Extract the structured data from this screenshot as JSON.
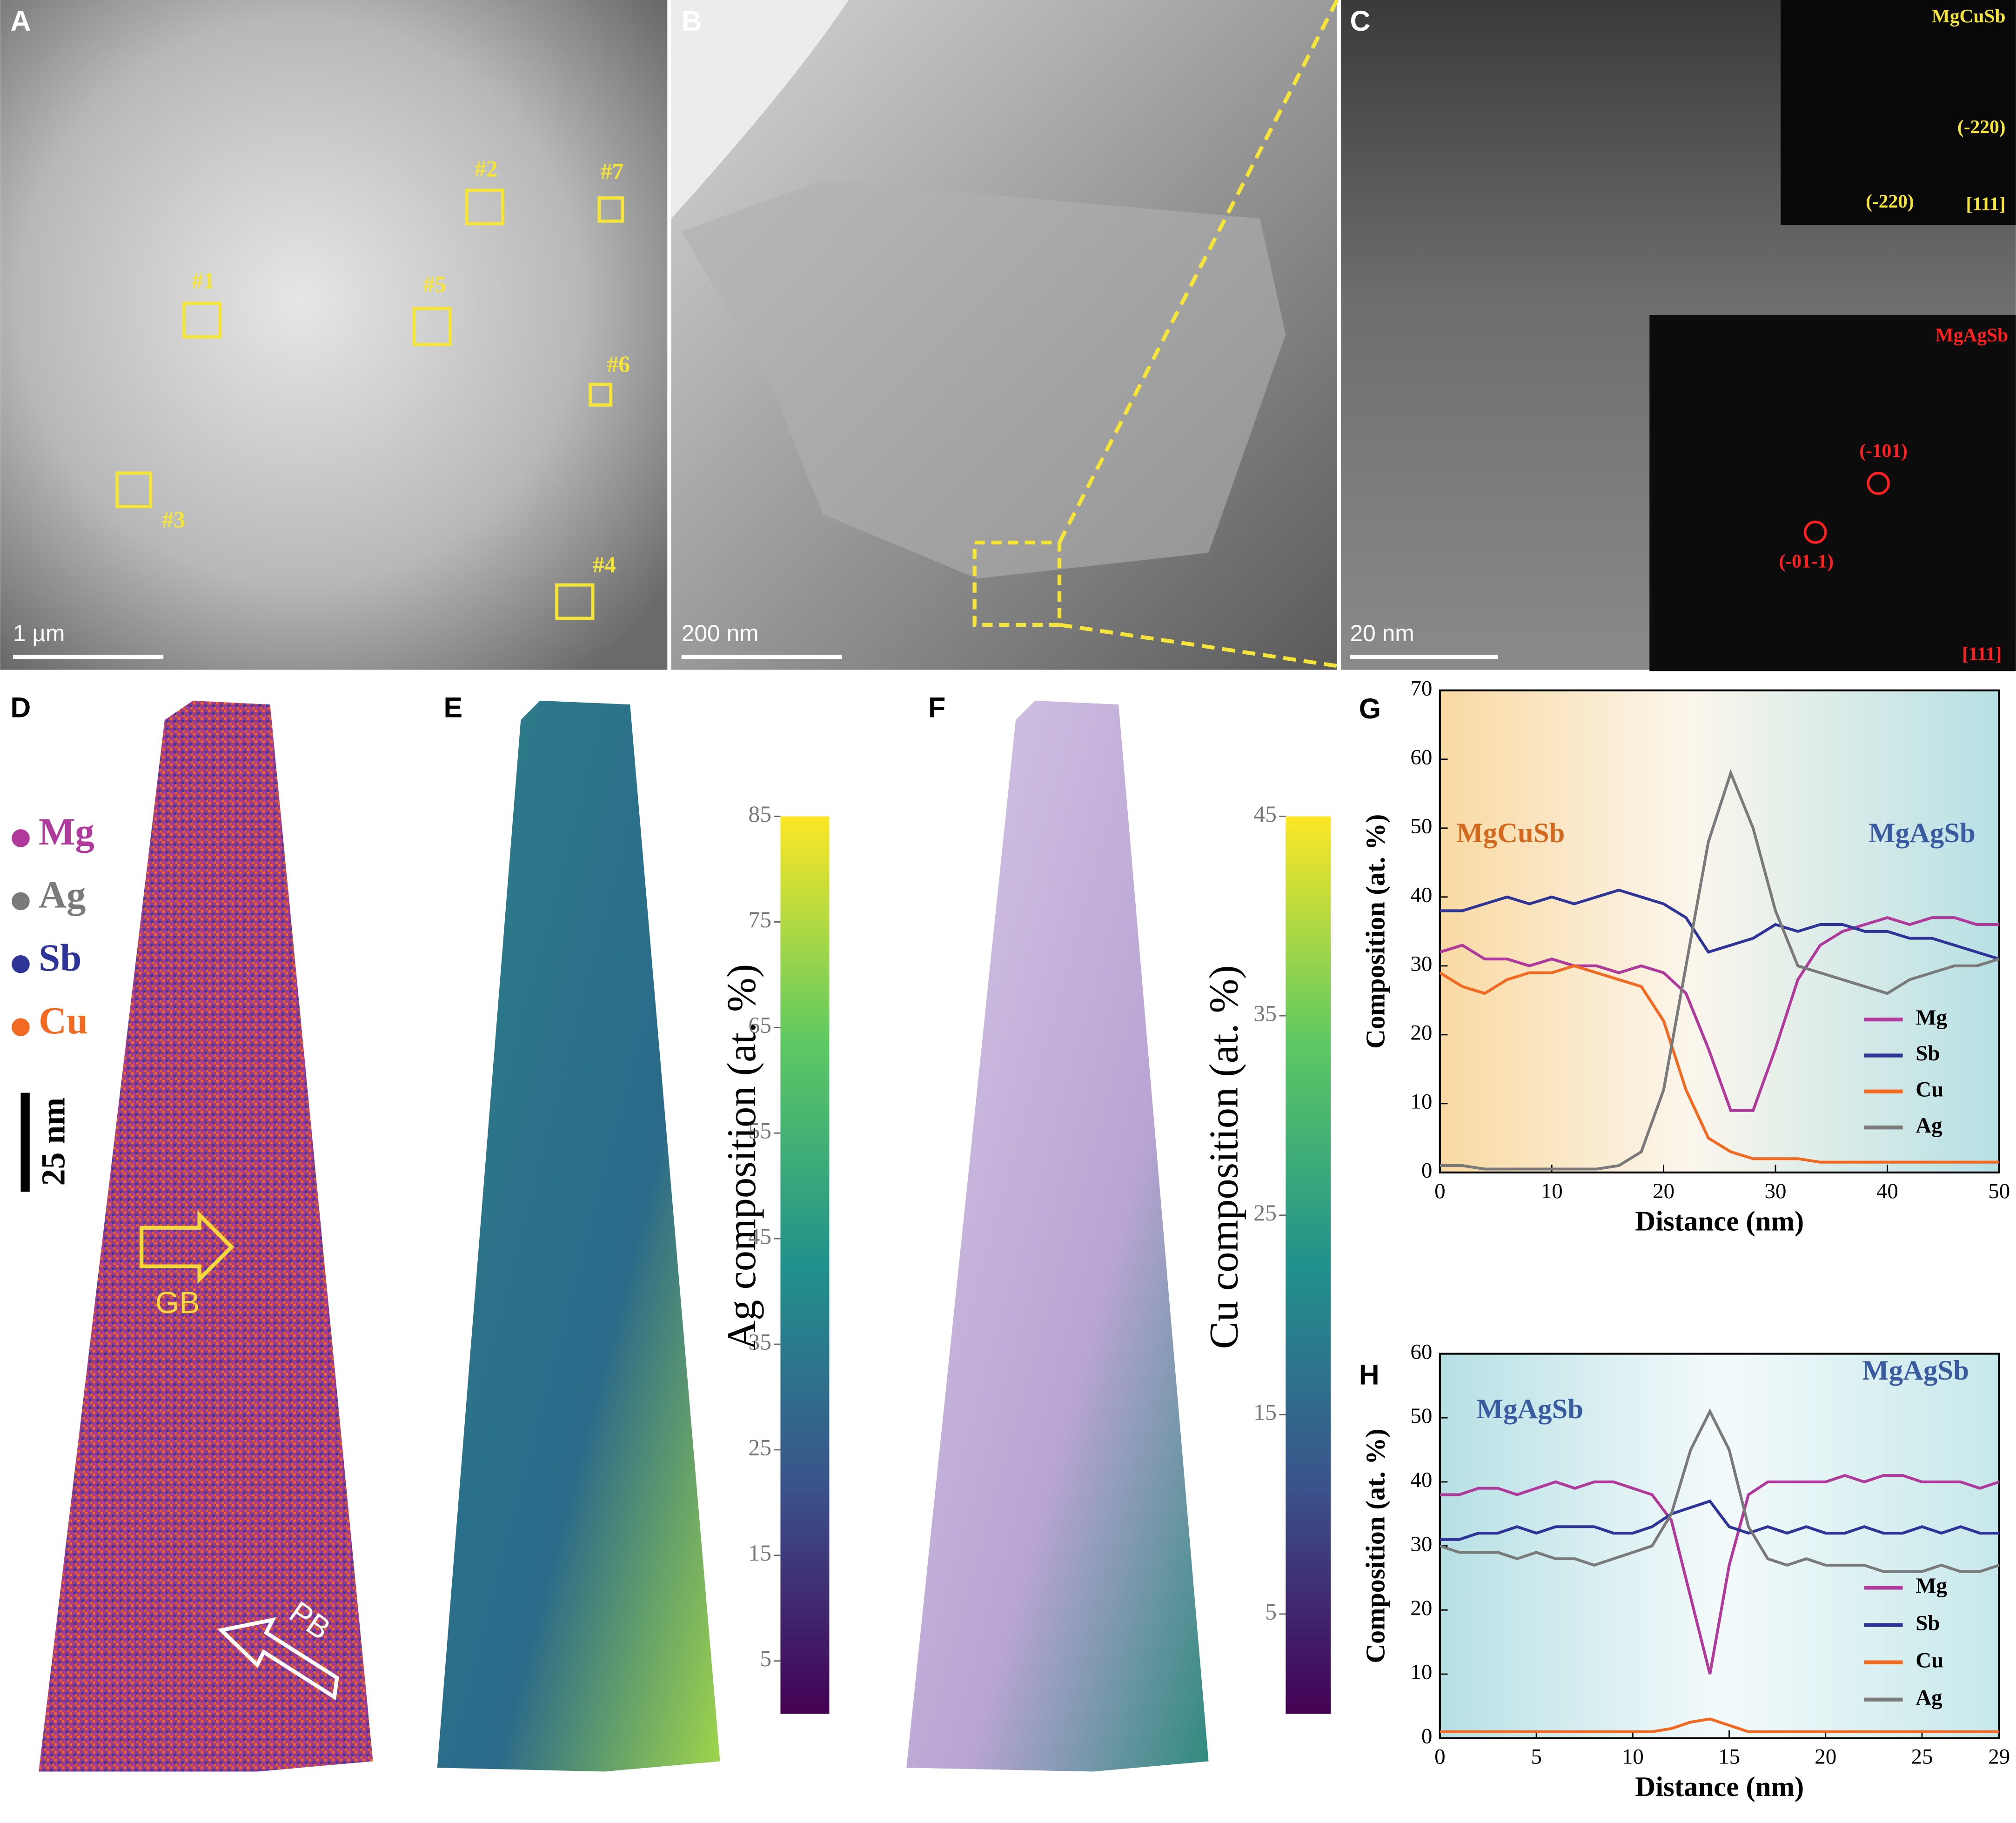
{
  "panels": {
    "A": {
      "label": "A",
      "scale_bar": "1 µm",
      "regions": [
        "#1",
        "#2",
        "#3",
        "#4",
        "#5",
        "#6",
        "#7"
      ]
    },
    "B": {
      "label": "B",
      "scale_bar": "200 nm"
    },
    "C": {
      "label": "C",
      "scale_bar": "20 nm",
      "inset_top": {
        "phase": "MgCuSb",
        "spots": [
          "(-220)",
          "(-220)"
        ],
        "zone_axis": "[111]"
      },
      "inset_bottom": {
        "phase": "MgAgSb",
        "spots": [
          "(-101)",
          "(-01-1)"
        ],
        "zone_axis": "[111]"
      }
    },
    "D": {
      "label": "D",
      "legend": [
        {
          "name": "Mg",
          "color": "#b03a9c"
        },
        {
          "name": "Ag",
          "color": "#7a7a7a"
        },
        {
          "name": "Sb",
          "color": "#2e3596"
        },
        {
          "name": "Cu",
          "color": "#f26a21"
        }
      ],
      "scale_bar": "25 nm",
      "arrows": [
        "GB",
        "PB"
      ]
    },
    "E": {
      "label": "E",
      "colorbar": {
        "label": "Ag composition (at. %)",
        "lim": [
          0,
          85
        ],
        "ticks": [
          5,
          15,
          25,
          35,
          45,
          55,
          65,
          75,
          85
        ]
      }
    },
    "F": {
      "label": "F",
      "colorbar": {
        "label": "Cu composition (at. %)",
        "lim": [
          0,
          45
        ],
        "ticks": [
          5,
          15,
          25,
          35,
          45
        ]
      }
    }
  },
  "chart_data": [
    {
      "type": "line",
      "label": "G",
      "xlabel": "Distance (nm)",
      "ylabel": "Composition (at. %)",
      "x": [
        0,
        2,
        4,
        6,
        8,
        10,
        12,
        14,
        16,
        18,
        20,
        22,
        24,
        26,
        28,
        30,
        32,
        34,
        36,
        38,
        40,
        42,
        44,
        46,
        48,
        50
      ],
      "series": [
        {
          "name": "Mg",
          "color": "#b03a9c",
          "values": [
            32,
            33,
            31,
            31,
            30,
            31,
            30,
            30,
            29,
            30,
            29,
            26,
            18,
            9,
            9,
            18,
            28,
            33,
            35,
            36,
            37,
            36,
            37,
            37,
            36,
            36
          ]
        },
        {
          "name": "Sb",
          "color": "#2e3596",
          "values": [
            38,
            38,
            39,
            40,
            39,
            40,
            39,
            40,
            41,
            40,
            39,
            37,
            32,
            33,
            34,
            36,
            35,
            36,
            36,
            35,
            35,
            34,
            34,
            33,
            32,
            31
          ]
        },
        {
          "name": "Cu",
          "color": "#f26a21",
          "values": [
            29,
            27,
            26,
            28,
            29,
            29,
            30,
            29,
            28,
            27,
            22,
            12,
            5,
            3,
            2,
            2,
            2,
            1.5,
            1.5,
            1.5,
            1.5,
            1.5,
            1.5,
            1.5,
            1.5,
            1.5
          ]
        },
        {
          "name": "Ag",
          "color": "#7a7a7a",
          "values": [
            1,
            1,
            0.5,
            0.5,
            0.5,
            0.5,
            0.5,
            0.5,
            1,
            3,
            12,
            30,
            48,
            58,
            50,
            38,
            30,
            29,
            28,
            27,
            26,
            28,
            29,
            30,
            30,
            31
          ]
        }
      ],
      "xlim": [
        0,
        50
      ],
      "ylim": [
        0,
        70
      ],
      "xticks": [
        0,
        10,
        20,
        30,
        40,
        50
      ],
      "yticks": [
        0,
        10,
        20,
        30,
        40,
        50,
        60,
        70
      ],
      "annotations": [
        {
          "text": "MgCuSb",
          "color": "#d2691e"
        },
        {
          "text": "MgAgSb",
          "color": "#3a5ba0"
        }
      ]
    },
    {
      "type": "line",
      "label": "H",
      "xlabel": "Distance (nm)",
      "ylabel": "Composition (at. %)",
      "x": [
        0,
        1,
        2,
        3,
        4,
        5,
        6,
        7,
        8,
        9,
        10,
        11,
        12,
        13,
        14,
        15,
        16,
        17,
        18,
        19,
        20,
        21,
        22,
        23,
        24,
        25,
        26,
        27,
        28,
        29
      ],
      "series": [
        {
          "name": "Mg",
          "color": "#b03a9c",
          "values": [
            38,
            38,
            39,
            39,
            38,
            39,
            40,
            39,
            40,
            40,
            39,
            38,
            34,
            22,
            10,
            27,
            38,
            40,
            40,
            40,
            40,
            41,
            40,
            41,
            41,
            40,
            40,
            40,
            39,
            40
          ]
        },
        {
          "name": "Sb",
          "color": "#2e3596",
          "values": [
            31,
            31,
            32,
            32,
            33,
            32,
            33,
            33,
            33,
            32,
            32,
            33,
            35,
            36,
            37,
            33,
            32,
            33,
            32,
            33,
            32,
            32,
            33,
            32,
            32,
            33,
            32,
            33,
            32,
            32
          ]
        },
        {
          "name": "Cu",
          "color": "#f26a21",
          "values": [
            1,
            1,
            1,
            1,
            1,
            1,
            1,
            1,
            1,
            1,
            1,
            1,
            1.5,
            2.5,
            3,
            2,
            1,
            1,
            1,
            1,
            1,
            1,
            1,
            1,
            1,
            1,
            1,
            1,
            1,
            1
          ]
        },
        {
          "name": "Ag",
          "color": "#7a7a7a",
          "values": [
            30,
            29,
            29,
            29,
            28,
            29,
            28,
            28,
            27,
            28,
            29,
            30,
            35,
            45,
            51,
            45,
            33,
            28,
            27,
            28,
            27,
            27,
            27,
            26,
            26,
            26,
            27,
            26,
            26,
            27
          ]
        }
      ],
      "xlim": [
        0,
        29
      ],
      "ylim": [
        0,
        60
      ],
      "xticks": [
        0,
        5,
        10,
        15,
        20,
        25,
        29
      ],
      "yticks": [
        0,
        10,
        20,
        30,
        40,
        50,
        60
      ],
      "annotations": [
        {
          "text": "MgAgSb",
          "color": "#3a5ba0"
        },
        {
          "text": "MgAgSb",
          "color": "#3a5ba0"
        }
      ]
    }
  ]
}
